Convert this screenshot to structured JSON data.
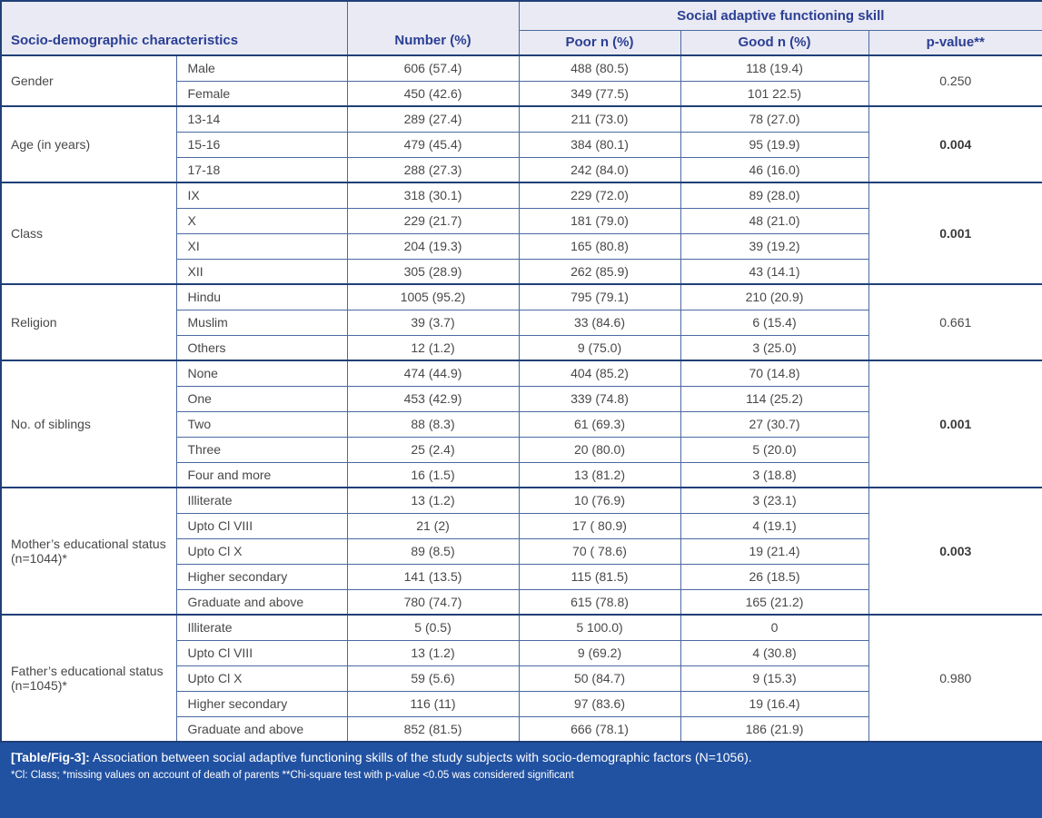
{
  "colors": {
    "header_bg": "#e9eaf3",
    "header_text": "#2b3e94",
    "body_text": "#48484a",
    "border_thin": "#4a6aa0",
    "border_thick": "#203f77",
    "caption_bg": "#2151a1",
    "caption_text": "#ffffff"
  },
  "table": {
    "header": {
      "col_characteristics": "Socio-demographic characteristics",
      "col_number": "Number (%)",
      "group_social": "Social adaptive functioning skill",
      "col_poor": "Poor n (%)",
      "col_good": "Good n (%)",
      "col_pvalue": "p-value**"
    },
    "groups": [
      {
        "label": "Gender",
        "p_value": "0.250",
        "p_bold": false,
        "rows": [
          {
            "category": "Male",
            "number": "606 (57.4)",
            "poor": "488 (80.5)",
            "good": "118 (19.4)"
          },
          {
            "category": "Female",
            "number": "450 (42.6)",
            "poor": "349 (77.5)",
            "good": "101 22.5)"
          }
        ]
      },
      {
        "label": "Age (in years)",
        "p_value": "0.004",
        "p_bold": true,
        "rows": [
          {
            "category": "13-14",
            "number": "289 (27.4)",
            "poor": "211 (73.0)",
            "good": "78 (27.0)"
          },
          {
            "category": "15-16",
            "number": "479 (45.4)",
            "poor": "384 (80.1)",
            "good": "95 (19.9)"
          },
          {
            "category": "17-18",
            "number": "288 (27.3)",
            "poor": "242 (84.0)",
            "good": "46 (16.0)"
          }
        ]
      },
      {
        "label": "Class",
        "p_value": "0.001",
        "p_bold": true,
        "rows": [
          {
            "category": "IX",
            "number": "318 (30.1)",
            "poor": "229 (72.0)",
            "good": "89 (28.0)"
          },
          {
            "category": "X",
            "number": "229 (21.7)",
            "poor": "181 (79.0)",
            "good": "48 (21.0)"
          },
          {
            "category": "XI",
            "number": "204 (19.3)",
            "poor": "165 (80.8)",
            "good": "39 (19.2)"
          },
          {
            "category": "XII",
            "number": "305 (28.9)",
            "poor": "262 (85.9)",
            "good": "43 (14.1)"
          }
        ]
      },
      {
        "label": "Religion",
        "p_value": "0.661",
        "p_bold": false,
        "rows": [
          {
            "category": "Hindu",
            "number": "1005 (95.2)",
            "poor": "795 (79.1)",
            "good": "210 (20.9)"
          },
          {
            "category": "Muslim",
            "number": "39 (3.7)",
            "poor": "33 (84.6)",
            "good": "6 (15.4)"
          },
          {
            "category": "Others",
            "number": "12 (1.2)",
            "poor": "9 (75.0)",
            "good": "3 (25.0)"
          }
        ]
      },
      {
        "label": "No. of siblings",
        "p_value": "0.001",
        "p_bold": true,
        "rows": [
          {
            "category": "None",
            "number": "474 (44.9)",
            "poor": "404 (85.2)",
            "good": "70 (14.8)"
          },
          {
            "category": "One",
            "number": "453 (42.9)",
            "poor": "339 (74.8)",
            "good": "114 (25.2)"
          },
          {
            "category": "Two",
            "number": "88 (8.3)",
            "poor": "61 (69.3)",
            "good": "27 (30.7)"
          },
          {
            "category": "Three",
            "number": "25 (2.4)",
            "poor": "20 (80.0)",
            "good": "5 (20.0)"
          },
          {
            "category": "Four and more",
            "number": "16 (1.5)",
            "poor": "13 (81.2)",
            "good": "3 (18.8)"
          }
        ]
      },
      {
        "label": "Mother’s educational status (n=1044)*",
        "p_value": "0.003",
        "p_bold": true,
        "rows": [
          {
            "category": "Illiterate",
            "number": "13 (1.2)",
            "poor": "10 (76.9)",
            "good": "3 (23.1)"
          },
          {
            "category": "Upto Cl VIII",
            "number": "21 (2)",
            "poor": "17 ( 80.9)",
            "good": "4 (19.1)"
          },
          {
            "category": "Upto Cl X",
            "number": "89 (8.5)",
            "poor": "70 ( 78.6)",
            "good": "19 (21.4)"
          },
          {
            "category": "Higher secondary",
            "number": "141 (13.5)",
            "poor": "115 (81.5)",
            "good": "26 (18.5)"
          },
          {
            "category": "Graduate and above",
            "number": "780 (74.7)",
            "poor": "615 (78.8)",
            "good": "165 (21.2)"
          }
        ]
      },
      {
        "label": "Father’s educational status (n=1045)*",
        "p_value": "0.980",
        "p_bold": false,
        "rows": [
          {
            "category": "Illiterate",
            "number": "5 (0.5)",
            "poor": "5 100.0)",
            "good": "0"
          },
          {
            "category": "Upto Cl VIII",
            "number": "13 (1.2)",
            "poor": "9 (69.2)",
            "good": "4 (30.8)"
          },
          {
            "category": "Upto Cl X",
            "number": "59 (5.6)",
            "poor": "50 (84.7)",
            "good": "9 (15.3)"
          },
          {
            "category": "Higher secondary",
            "number": "116 (11)",
            "poor": "97 (83.6)",
            "good": "19 (16.4)"
          },
          {
            "category": "Graduate and above",
            "number": "852 (81.5)",
            "poor": "666 (78.1)",
            "good": "186 (21.9)"
          }
        ]
      }
    ]
  },
  "caption": {
    "tag": "[Table/Fig-3]:",
    "text": "Association between social adaptive functioning skills of the study subjects with socio-demographic factors (N=1056).",
    "footnote": "*Cl: Class; *missing values on account of death of parents **Chi-square test with p-value <0.05 was considered significant"
  }
}
